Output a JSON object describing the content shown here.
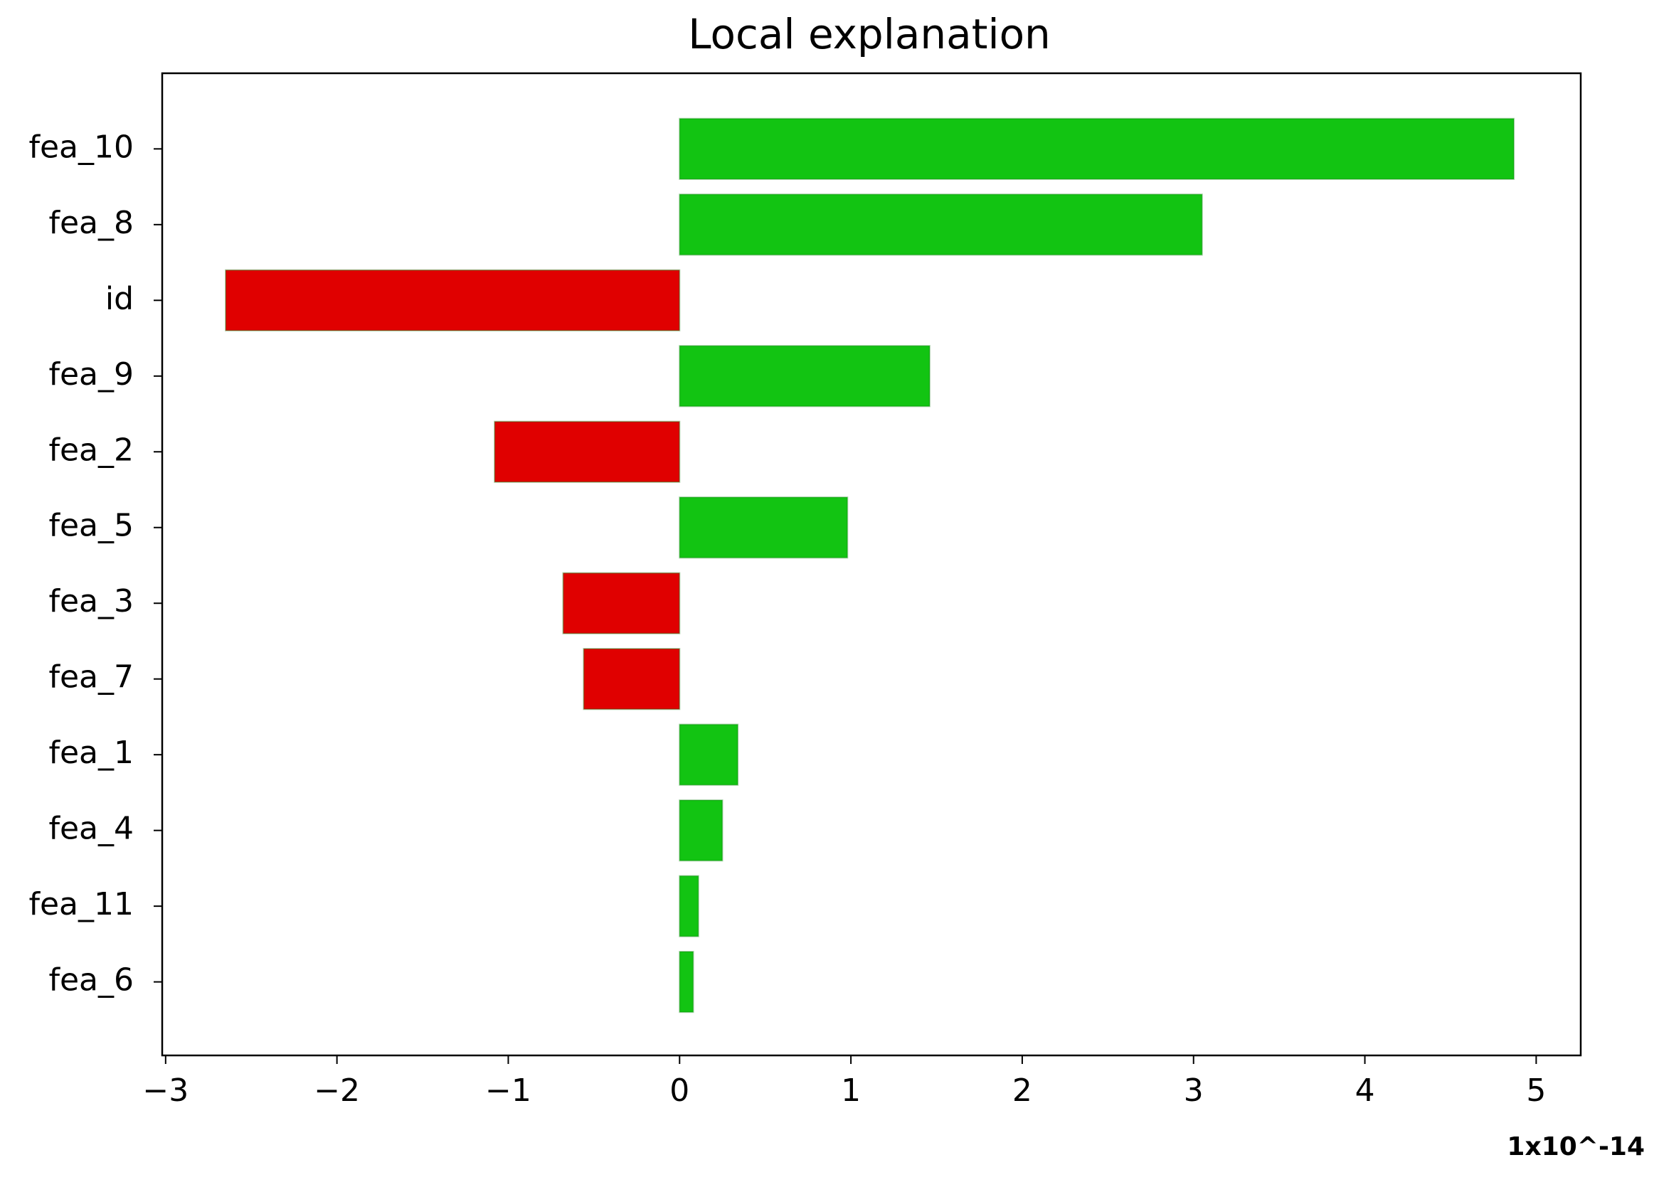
{
  "chart_data": {
    "type": "barh",
    "title": "Local explanation",
    "categories": [
      "fea_10",
      "fea_8",
      "id",
      "fea_9",
      "fea_2",
      "fea_5",
      "fea_3",
      "fea_7",
      "fea_1",
      "fea_4",
      "fea_11",
      "fea_6"
    ],
    "values": [
      4.87,
      3.05,
      -2.65,
      1.46,
      -1.08,
      0.98,
      -0.68,
      -0.56,
      0.34,
      0.25,
      0.11,
      0.08
    ],
    "colors": [
      "#12c412",
      "#12c412",
      "#e00000",
      "#12c412",
      "#e00000",
      "#12c412",
      "#e00000",
      "#e00000",
      "#12c412",
      "#12c412",
      "#12c412",
      "#12c412"
    ],
    "xlim": [
      -3.02,
      5.26
    ],
    "xticks": [
      {
        "value": -3,
        "label": "−3"
      },
      {
        "value": -2,
        "label": "−2"
      },
      {
        "value": -1,
        "label": "−1"
      },
      0,
      1,
      2,
      3,
      4,
      5
    ],
    "x_offset_label": "1x10^-14"
  }
}
